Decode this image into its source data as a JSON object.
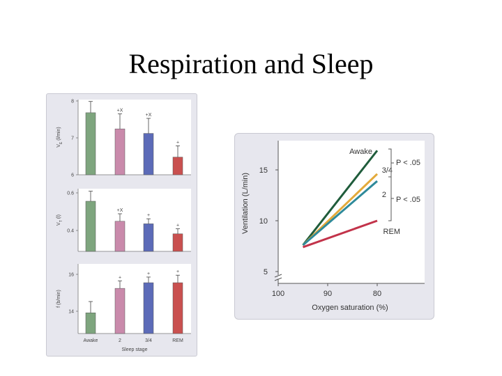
{
  "slide": {
    "title": "Respiration and Sleep"
  },
  "colors": {
    "awake": "#7ea57e",
    "stage2": "#c98aab",
    "stage34": "#5c6bb8",
    "rem": "#c9504f",
    "line_awake": "#1f5c3b",
    "line_34": "#e3aa3b",
    "line_2": "#2f8a9a",
    "line_rem": "#c2334a"
  },
  "chart_data": [
    {
      "type": "bar",
      "categories": [
        "Awake",
        "2",
        "3/4",
        "REM"
      ],
      "xlabel": "Sleep stage",
      "panels": [
        {
          "ylabel_main": "V",
          "ylabel_sub": "E",
          "ylabel_rest": "(l/min)",
          "ylim": [
            6,
            8
          ],
          "yticks": [
            "8",
            "7",
            "6"
          ],
          "values": [
            7.65,
            7.22,
            7.1,
            6.47
          ],
          "errors": [
            0.3,
            0.4,
            0.4,
            0.3
          ],
          "markers": [
            "",
            "+X",
            "+X",
            "+"
          ]
        },
        {
          "ylabel_main": "V",
          "ylabel_sub": "T",
          "ylabel_rest": "(l)",
          "ylim": [
            0.35,
            0.6
          ],
          "yticks": [
            "0.6",
            "0.4"
          ],
          "values": [
            0.55,
            0.47,
            0.46,
            0.42
          ],
          "errors": [
            0.04,
            0.03,
            0.02,
            0.02
          ],
          "markers": [
            "",
            "+X",
            "+",
            "+"
          ]
        },
        {
          "ylabel_main": "f (b/min)",
          "ylabel_sub": "",
          "ylabel_rest": "",
          "ylim": [
            13.0,
            16.7
          ],
          "yticks": [
            "16",
            "14"
          ],
          "values": [
            14.1,
            15.4,
            15.7,
            15.7
          ],
          "errors": [
            0.6,
            0.4,
            0.3,
            0.4
          ],
          "markers": [
            "",
            "+",
            "+",
            "+"
          ]
        }
      ]
    },
    {
      "type": "line",
      "xlabel": "Oxygen saturation (%)",
      "ylabel": "Ventilation (L/min)",
      "xlim": [
        100,
        80
      ],
      "ylim": [
        5,
        17
      ],
      "xticks": [
        "100",
        "90",
        "80"
      ],
      "yticks": [
        "15",
        "10",
        "5"
      ],
      "series": [
        {
          "name": "Awake",
          "x": [
            95,
            80
          ],
          "y": [
            7.6,
            16.9
          ]
        },
        {
          "name": "3/4",
          "x": [
            95,
            80
          ],
          "y": [
            7.6,
            14.6
          ]
        },
        {
          "name": "2",
          "x": [
            95,
            80
          ],
          "y": [
            7.6,
            13.9
          ]
        },
        {
          "name": "REM",
          "x": [
            95,
            80
          ],
          "y": [
            7.4,
            10.0
          ]
        }
      ],
      "annotations": [
        "P < .05",
        "P < .05"
      ]
    }
  ]
}
